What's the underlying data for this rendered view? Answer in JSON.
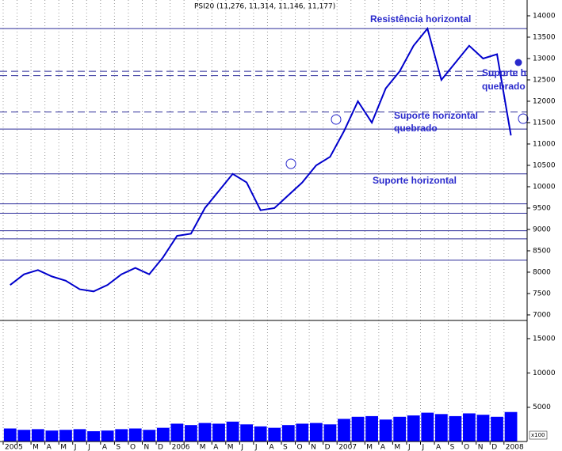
{
  "chart_data": [
    {
      "type": "line",
      "title": "PSI20 (11,276, 11,314, 11,146, 11,177)",
      "values": [
        7700,
        7950,
        8050,
        7900,
        7800,
        7600,
        7550,
        7700,
        7950,
        8100,
        7950,
        8350,
        8850,
        8900,
        9500,
        9900,
        10300,
        10100,
        9450,
        9500,
        9800,
        10100,
        10500,
        10700,
        11300,
        12000,
        11500,
        12300,
        12700,
        13300,
        13700,
        12500,
        12900,
        13300,
        13000,
        13100,
        11200
      ],
      "color": "#0000cc",
      "ylim": [
        6870,
        14370
      ],
      "yticks": [
        7000,
        7500,
        8000,
        8500,
        9000,
        9500,
        10000,
        10500,
        11000,
        11500,
        12000,
        12500,
        13000,
        13500,
        14000
      ],
      "reference_lines": [
        {
          "value": 13700,
          "style": "solid"
        },
        {
          "value": 12700,
          "style": "dashed"
        },
        {
          "value": 12600,
          "style": "dashed"
        },
        {
          "value": 11750,
          "style": "dashed"
        },
        {
          "value": 11350,
          "style": "solid"
        },
        {
          "value": 10300,
          "style": "solid"
        },
        {
          "value": 9600,
          "style": "solid"
        },
        {
          "value": 9380,
          "style": "solid"
        },
        {
          "value": 8970,
          "style": "solid"
        },
        {
          "value": 8780,
          "style": "solid"
        },
        {
          "value": 8280,
          "style": "solid"
        }
      ],
      "annotations": [
        "Resistência horizontal",
        "Suporte horizontal",
        "quebrado",
        "Suporte horizontal",
        "Suporte h",
        "quebrado"
      ]
    },
    {
      "type": "bar",
      "categories": [
        "2005",
        null,
        "M",
        "A",
        "M",
        "J",
        "J",
        "A",
        "S",
        "O",
        "N",
        "D",
        "2006",
        null,
        "M",
        "A",
        "M",
        "J",
        "J",
        "A",
        "S",
        "O",
        "N",
        "D",
        "2007",
        null,
        "M",
        "A",
        "M",
        "J",
        "J",
        "A",
        "S",
        "O",
        "N",
        "D",
        "2008"
      ],
      "values": [
        1900,
        1700,
        1800,
        1600,
        1700,
        1800,
        1500,
        1600,
        1800,
        1900,
        1700,
        2000,
        2600,
        2400,
        2700,
        2600,
        2900,
        2500,
        2200,
        2000,
        2400,
        2600,
        2700,
        2500,
        3300,
        3600,
        3700,
        3200,
        3600,
        3800,
        4200,
        4000,
        3700,
        4100,
        3900,
        3600,
        4300
      ],
      "color": "#0000ff",
      "ylim": [
        0,
        17650
      ],
      "yticks": [
        5000,
        10000,
        15000
      ],
      "unit_label": "x100",
      "grid": true
    }
  ]
}
